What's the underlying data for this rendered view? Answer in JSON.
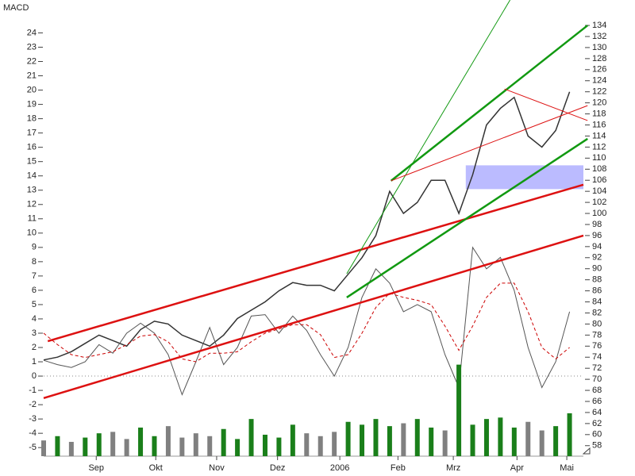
{
  "chart_data": {
    "type": "line",
    "title": "MACD",
    "x": [
      0,
      1,
      2,
      3,
      4,
      5,
      6,
      7,
      8,
      9,
      10,
      11,
      12,
      13,
      14,
      15,
      16,
      17,
      18,
      19,
      20,
      21,
      22,
      23,
      24,
      25,
      26,
      27,
      28,
      29,
      30,
      31,
      32,
      33,
      34,
      35,
      36,
      37,
      38
    ],
    "xlim": [
      0,
      39
    ],
    "xticks": [
      {
        "value": 3.8,
        "label": "Sep"
      },
      {
        "value": 8.1,
        "label": "Okt"
      },
      {
        "value": 12.5,
        "label": "Nov"
      },
      {
        "value": 16.9,
        "label": "Dez"
      },
      {
        "value": 21.4,
        "label": "2006"
      },
      {
        "value": 25.6,
        "label": "Feb"
      },
      {
        "value": 29.6,
        "label": "Mrz"
      },
      {
        "value": 34.2,
        "label": "Apr"
      },
      {
        "value": 37.8,
        "label": "Mai"
      }
    ],
    "ylim": [
      -5.6,
      26.3
    ],
    "yticks": [
      -5,
      -4,
      -3,
      -2,
      -1,
      0,
      1,
      2,
      3,
      4,
      5,
      6,
      7,
      8,
      9,
      10,
      11,
      12,
      13,
      14,
      15,
      16,
      17,
      18,
      19,
      20,
      21,
      22,
      23,
      24
    ],
    "y2lim": [
      56.1,
      138.6
    ],
    "y2ticks": [
      58,
      60,
      62,
      64,
      66,
      68,
      70,
      72,
      74,
      76,
      78,
      80,
      82,
      84,
      86,
      88,
      90,
      92,
      94,
      96,
      98,
      100,
      102,
      104,
      106,
      108,
      110,
      112,
      114,
      116,
      118,
      120,
      122,
      124,
      126,
      128,
      130,
      132,
      134
    ],
    "zero_line": true,
    "series": [
      {
        "axis": "y2",
        "color": "#333333",
        "values": [
          73.5,
          74,
          75,
          76.5,
          78,
          77,
          76,
          79,
          80.5,
          80,
          78,
          77,
          76,
          78,
          81,
          82.5,
          84,
          86,
          87.5,
          87,
          87,
          86,
          89,
          92,
          96,
          104,
          100,
          102,
          106,
          106,
          100,
          107,
          116,
          119,
          121,
          114,
          112,
          115,
          122
        ]
      },
      {
        "color": "#555555",
        "values": [
          1.1,
          0.8,
          0.6,
          1.0,
          2.2,
          1.6,
          3.0,
          3.7,
          3.0,
          1.5,
          -1.3,
          1.0,
          3.4,
          0.8,
          2.0,
          4.2,
          4.3,
          3.0,
          4.2,
          3.2,
          1.5,
          0.0,
          2.0,
          5.5,
          7.5,
          6.5,
          4.5,
          5.0,
          4.5,
          1.5,
          -0.8,
          9.0,
          7.5,
          8.3,
          6.0,
          2.0,
          -0.8,
          1.0,
          4.5
        ]
      },
      {
        "color": "#cc0000",
        "dash": true,
        "values": [
          3.0,
          2.2,
          1.5,
          1.3,
          1.5,
          1.7,
          2.2,
          2.8,
          2.9,
          2.4,
          1.2,
          1.0,
          1.6,
          1.6,
          1.7,
          2.4,
          3.0,
          3.3,
          3.6,
          3.6,
          2.9,
          1.3,
          1.5,
          3.0,
          4.8,
          5.8,
          5.5,
          5.3,
          5.0,
          3.5,
          1.8,
          3.5,
          5.5,
          6.5,
          6.5,
          4.5,
          2.0,
          1.2,
          2.0
        ]
      },
      {
        "type": "bar",
        "values": [
          -4.5,
          -4.2,
          -4.6,
          -4.3,
          -4.0,
          -3.9,
          -4.4,
          -3.6,
          -4.2,
          -3.5,
          -4.3,
          -4.0,
          -4.2,
          -3.7,
          -4.4,
          -3.0,
          -4.1,
          -4.3,
          -3.4,
          -4.0,
          -4.2,
          -3.9,
          -3.2,
          -3.4,
          -3.0,
          -3.5,
          -3.3,
          -3.0,
          -3.6,
          -3.8,
          0.8,
          -3.4,
          -3.0,
          -2.9,
          -3.6,
          -3.2,
          -3.8,
          -3.5,
          -2.6
        ],
        "colors": [
          "#808080",
          "#1a7f1a",
          "#808080",
          "#1a7f1a",
          "#1a7f1a",
          "#808080",
          "#808080",
          "#1a7f1a",
          "#1a7f1a",
          "#808080",
          "#808080",
          "#808080",
          "#808080",
          "#1a7f1a",
          "#1a7f1a",
          "#1a7f1a",
          "#1a7f1a",
          "#1a7f1a",
          "#1a7f1a",
          "#808080",
          "#808080",
          "#808080",
          "#1a7f1a",
          "#1a7f1a",
          "#1a7f1a",
          "#1a7f1a",
          "#808080",
          "#1a7f1a",
          "#1a7f1a",
          "#808080",
          "#1a7f1a",
          "#1a7f1a",
          "#1a7f1a",
          "#1a7f1a",
          "#1a7f1a",
          "#808080",
          "#808080",
          "#1a7f1a",
          "#1a7f1a"
        ]
      }
    ],
    "lines": [
      {
        "x": [
          0.3,
          39
        ],
        "y": [
          76.9,
          105.2
        ],
        "color": "#dd1111",
        "width": 2.5
      },
      {
        "x": [
          0,
          39
        ],
        "y": [
          66.6,
          96.0
        ],
        "color": "#dd1111",
        "width": 2.5
      },
      {
        "x": [
          25.1,
          39.3
        ],
        "y": [
          105.9,
          134
        ],
        "color": "#119911",
        "width": 2.5
      },
      {
        "x": [
          21.9,
          39.3
        ],
        "y": [
          84.8,
          113.5
        ],
        "color": "#119911",
        "width": 2.5
      },
      {
        "x": [
          21.9,
          33.7
        ],
        "y": [
          89.1,
          138.6
        ],
        "color": "#119911",
        "width": 1
      },
      {
        "x": [
          25.1,
          39.3
        ],
        "y": [
          105.9,
          119.5
        ],
        "color": "#dd1111",
        "width": 1
      },
      {
        "x": [
          33.3,
          39.3
        ],
        "y": [
          122.5,
          116.8
        ],
        "color": "#dd1111",
        "width": 1
      }
    ],
    "box": {
      "x": [
        30.5,
        39
      ],
      "y": [
        104.4,
        108.7
      ],
      "color": "#aaaaff"
    }
  }
}
